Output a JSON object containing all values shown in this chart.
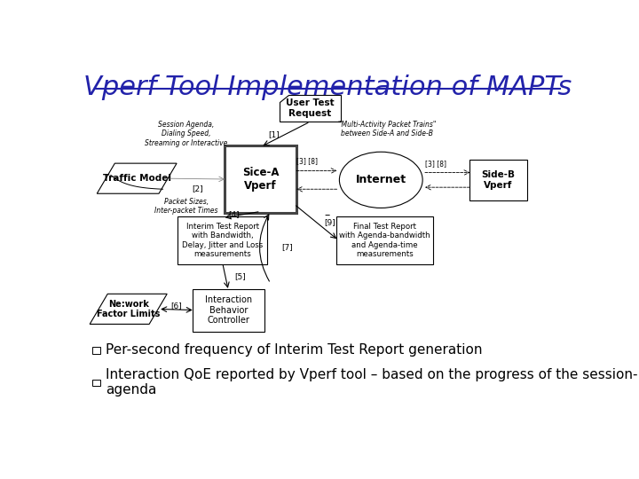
{
  "title": "Vperf Tool Implementation of MAPTs",
  "title_color": "#2222AA",
  "title_fontsize": 22,
  "title_underline": true,
  "background_color": "#FFFFFF",
  "bullet_items": [
    "Per-second frequency of Interim Test Report generation",
    "Interaction QoE reported by Vperf tool – based on the progress of the session-\nagenda"
  ],
  "bullet_color": "#000000",
  "bullet_fontsize": 11
}
